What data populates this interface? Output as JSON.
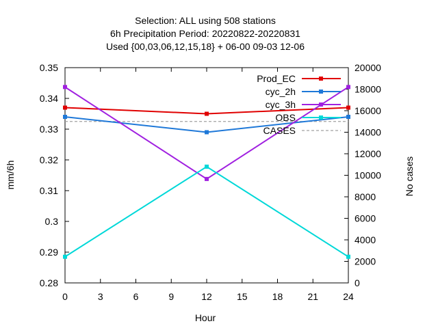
{
  "chart_data": {
    "type": "line",
    "title_lines": [
      "Selection: ALL using   508 stations",
      "6h Precipitation    Period: 20220822-20220831",
      "Used {00,03,06,12,15,18} + 06-00 09-03 12-06"
    ],
    "xlabel": "Hour",
    "ylabel": "mm/6h",
    "y2label": "No cases",
    "xlim": [
      0,
      24
    ],
    "ylim": [
      0.28,
      0.35
    ],
    "y2lim": [
      0,
      20000
    ],
    "xticks": [
      "0",
      "3",
      "6",
      "9",
      "12",
      "15",
      "18",
      "21",
      "24"
    ],
    "yticks": [
      "0.28",
      "0.29",
      "0.3",
      "0.31",
      "0.32",
      "0.33",
      "0.34",
      "0.35"
    ],
    "y2ticks": [
      "0",
      "2000",
      "4000",
      "6000",
      "8000",
      "10000",
      "12000",
      "14000",
      "16000",
      "18000",
      "20000"
    ],
    "grid": false,
    "legend_position": "top-right",
    "x": [
      0,
      12,
      24
    ],
    "series": [
      {
        "name": "Prod_EC",
        "color": "#e00000",
        "axis": "y",
        "values": [
          0.337,
          0.335,
          0.337
        ]
      },
      {
        "name": "cyc_2h",
        "color": "#1e78d8",
        "axis": "y",
        "values": [
          0.334,
          0.329,
          0.334
        ]
      },
      {
        "name": "cyc_3h",
        "color": "#a020e0",
        "axis": "y",
        "values": [
          0.3437,
          0.3138,
          0.3437
        ]
      },
      {
        "name": "OBS",
        "color": "#00d8d8",
        "axis": "y",
        "values": [
          0.2885,
          0.3178,
          0.2885
        ]
      },
      {
        "name": "CASES",
        "color": "#a0a0a0",
        "axis": "y2",
        "values": [
          15000,
          15000,
          15000
        ],
        "dashed": true
      }
    ]
  }
}
